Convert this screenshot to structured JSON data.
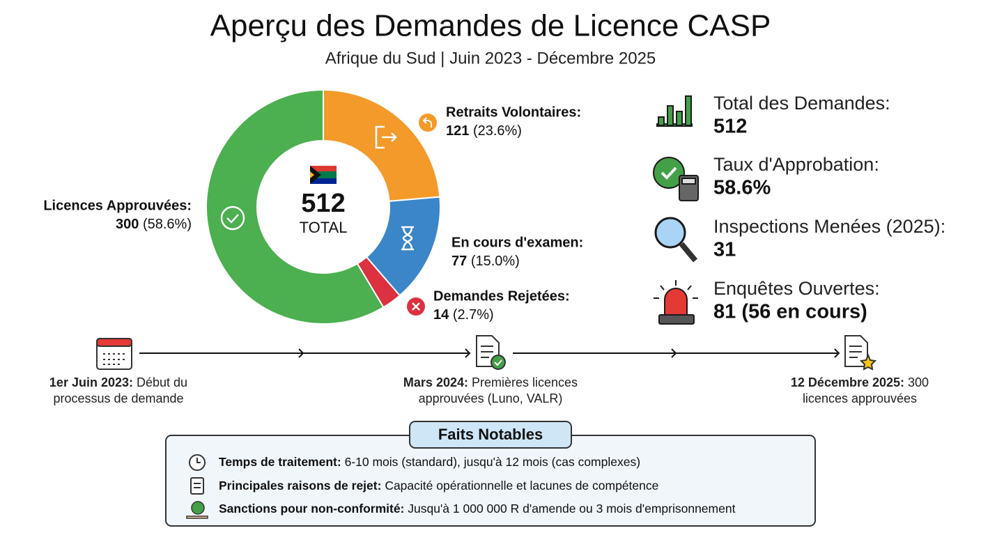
{
  "chart_data": {
    "type": "donut",
    "title": "Aperçu des Demandes de Licence CASP",
    "subtitle": "Afrique du Sud | Juin 2023 - Décembre 2025",
    "categories": [
      "Retraits Volontaires:",
      "En cours d'examen:",
      "Demandes Rejetées:",
      "Licences Approuvées:"
    ],
    "values": [
      121,
      77,
      14,
      300
    ],
    "percentages": [
      "(23.6%)",
      "(15.0%)",
      "(2.7%)",
      "(58.6%)"
    ],
    "colors": [
      "#f39a2b",
      "#3b86c8",
      "#dc3140",
      "#4caf50"
    ],
    "center_value": 512,
    "center_label": "TOTAL"
  },
  "stats": [
    {
      "label": "Total des Demandes:",
      "value": "512"
    },
    {
      "label": "Taux d'Approbation:",
      "value": "58.6%"
    },
    {
      "label": "Inspections Menées (2025):",
      "value": "31"
    },
    {
      "label": "Enquêtes Ouvertes:",
      "value": "81 (56 en cours)"
    }
  ],
  "timeline": [
    {
      "date": "1er Juin 2023:",
      "lines": [
        "Début du",
        "processus de demande"
      ]
    },
    {
      "date": "Mars 2024:",
      "lines": [
        "Premières licences",
        "approuvées (Luno, VALR)"
      ]
    },
    {
      "date": "12 Décembre 2025:",
      "lines": [
        "300",
        "licences approuvées"
      ]
    }
  ],
  "facts": {
    "title": "Faits Notables",
    "items": [
      {
        "label": "Temps de traitement:",
        "text": "6-10 mois (standard), jusqu'à 12 mois (cas complexes)"
      },
      {
        "label": "Principales raisons de rejet:",
        "text": "Capacité opérationnelle et lacunes de compétence"
      },
      {
        "label": "Sanctions pour non-conformité:",
        "text": "Jusqu'à 1 000 000 R d'amende ou 3 mois d'emprisonnement"
      }
    ]
  }
}
